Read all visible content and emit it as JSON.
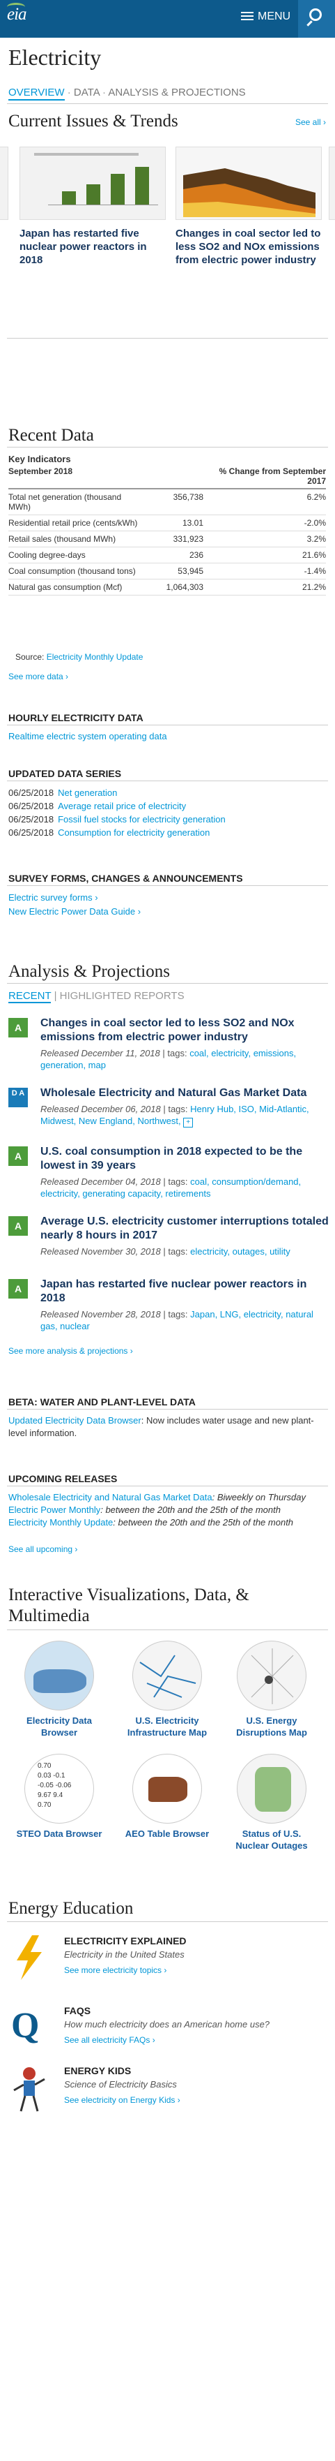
{
  "header": {
    "logo": "eia",
    "menu_label": "MENU"
  },
  "page": {
    "title": "Electricity"
  },
  "subnav": {
    "overview": "OVERVIEW",
    "data": "DATA",
    "analysis": "ANALYSIS & PROJECTIONS"
  },
  "current_issues": {
    "title": "Current Issues & Trends",
    "see_all": "See all",
    "cards": [
      {
        "caption": "Japan has restarted five nuclear power reactors in 2018"
      },
      {
        "caption": "Changes in coal sector led to less SO2 and NOx emissions from electric power industry"
      }
    ]
  },
  "recent_data": {
    "title": "Recent Data",
    "key_indicators": "Key Indicators",
    "col_period": "September 2018",
    "col_change": "% Change from September 2017",
    "rows": [
      {
        "label": "Total net generation (thousand MWh)",
        "value": "356,738",
        "change": "6.2%"
      },
      {
        "label": "Residential retail price (cents/kWh)",
        "value": "13.01",
        "change": "-2.0%"
      },
      {
        "label": "Retail sales (thousand MWh)",
        "value": "331,923",
        "change": "3.2%"
      },
      {
        "label": "Cooling degree-days",
        "value": "236",
        "change": "21.6%"
      },
      {
        "label": "Coal consumption (thousand tons)",
        "value": "53,945",
        "change": "-1.4%"
      },
      {
        "label": "Natural gas consumption (Mcf)",
        "value": "1,064,303",
        "change": "21.2%"
      }
    ],
    "source_label": "Source:",
    "source_link": "Electricity Monthly Update",
    "see_more": "See more data"
  },
  "hourly": {
    "title": "HOURLY ELECTRICITY DATA",
    "link": "Realtime electric system operating data"
  },
  "updated": {
    "title": "UPDATED DATA SERIES",
    "items": [
      {
        "date": "06/25/2018",
        "label": "Net generation"
      },
      {
        "date": "06/25/2018",
        "label": "Average retail price of electricity"
      },
      {
        "date": "06/25/2018",
        "label": "Fossil fuel stocks for electricity generation"
      },
      {
        "date": "06/25/2018",
        "label": "Consumption for electricity generation"
      }
    ]
  },
  "survey": {
    "title": "SURVEY FORMS, CHANGES & ANNOUNCEMENTS",
    "link1": "Electric survey forms",
    "link2": "New Electric Power Data Guide"
  },
  "analysis": {
    "title": "Analysis & Projections",
    "tab_recent": "RECENT",
    "tab_highlighted": "HIGHLIGHTED REPORTS",
    "items": [
      {
        "badge": "A",
        "title": "Changes in coal sector led to less SO2 and NOx emissions from electric power industry",
        "released": "Released December 11, 2018",
        "tags": "coal, electricity, emissions, generation, map"
      },
      {
        "badge": "D A",
        "title": "Wholesale Electricity and Natural Gas Market Data",
        "released": "Released December 06, 2018",
        "tags": "Henry Hub, ISO, Mid-Atlantic, Midwest, New England, Northwest,"
      },
      {
        "badge": "A",
        "title": "U.S. coal consumption in 2018 expected to be the lowest in 39 years",
        "released": "Released December 04, 2018",
        "tags": "coal, consumption/demand, electricity, generating capacity, retirements"
      },
      {
        "badge": "A",
        "title": "Average U.S. electricity customer interruptions totaled nearly 8 hours in 2017",
        "released": "Released November 30, 2018",
        "tags": "electricity, outages, utility"
      },
      {
        "badge": "A",
        "title": "Japan has restarted five nuclear power reactors in 2018",
        "released": "Released November 28, 2018",
        "tags": "Japan, LNG, electricity, natural gas, nuclear"
      }
    ],
    "tags_label": "tags:",
    "see_more": "See more analysis & projections"
  },
  "beta": {
    "title": "BETA: WATER AND PLANT-LEVEL DATA",
    "link": "Updated Electricity Data Browser",
    "text": ": Now includes water usage and new plant-level information."
  },
  "upcoming": {
    "title": "UPCOMING RELEASES",
    "items": [
      {
        "link": "Wholesale Electricity and Natural Gas Market Data",
        "text": ": Biweekly on Thursday"
      },
      {
        "link": "Electric Power Monthly",
        "text": ": between the 20th and the 25th of the month"
      },
      {
        "link": "Electricity Monthly Update",
        "text": ": between the 20th and the 25th of the month"
      }
    ],
    "see_all": "See all upcoming"
  },
  "viz": {
    "title": "Interactive Visualizations, Data, & Multimedia",
    "items": [
      {
        "label": "Electricity Data Browser"
      },
      {
        "label": "U.S. Electricity Infrastructure Map"
      },
      {
        "label": "U.S. Energy Disruptions Map"
      },
      {
        "label": "STEO Data Browser"
      },
      {
        "label": "AEO Table Browser"
      },
      {
        "label": "Status of U.S. Nuclear Outages"
      }
    ],
    "steo_values": [
      "0.70",
      "0.03",
      "-0.1",
      "-0.05",
      "-0.06",
      "9.67",
      "9.4",
      "0.70"
    ]
  },
  "education": {
    "title": "Energy Education",
    "items": [
      {
        "heading": "ELECTRICITY EXPLAINED",
        "sub": "Electricity in the United States",
        "more": "See more electricity topics"
      },
      {
        "heading": "FAQS",
        "sub": "How much electricity does an American home use?",
        "more": "See all electricity FAQs"
      },
      {
        "heading": "ENERGY KIDS",
        "sub": "Science of Electricity Basics",
        "more": "See electricity on Energy Kids"
      }
    ]
  },
  "colors": {
    "header": "#0d5a8c",
    "accent": "#0096d7",
    "badge_green": "#4d9c3b",
    "title_navy": "#17365d"
  }
}
